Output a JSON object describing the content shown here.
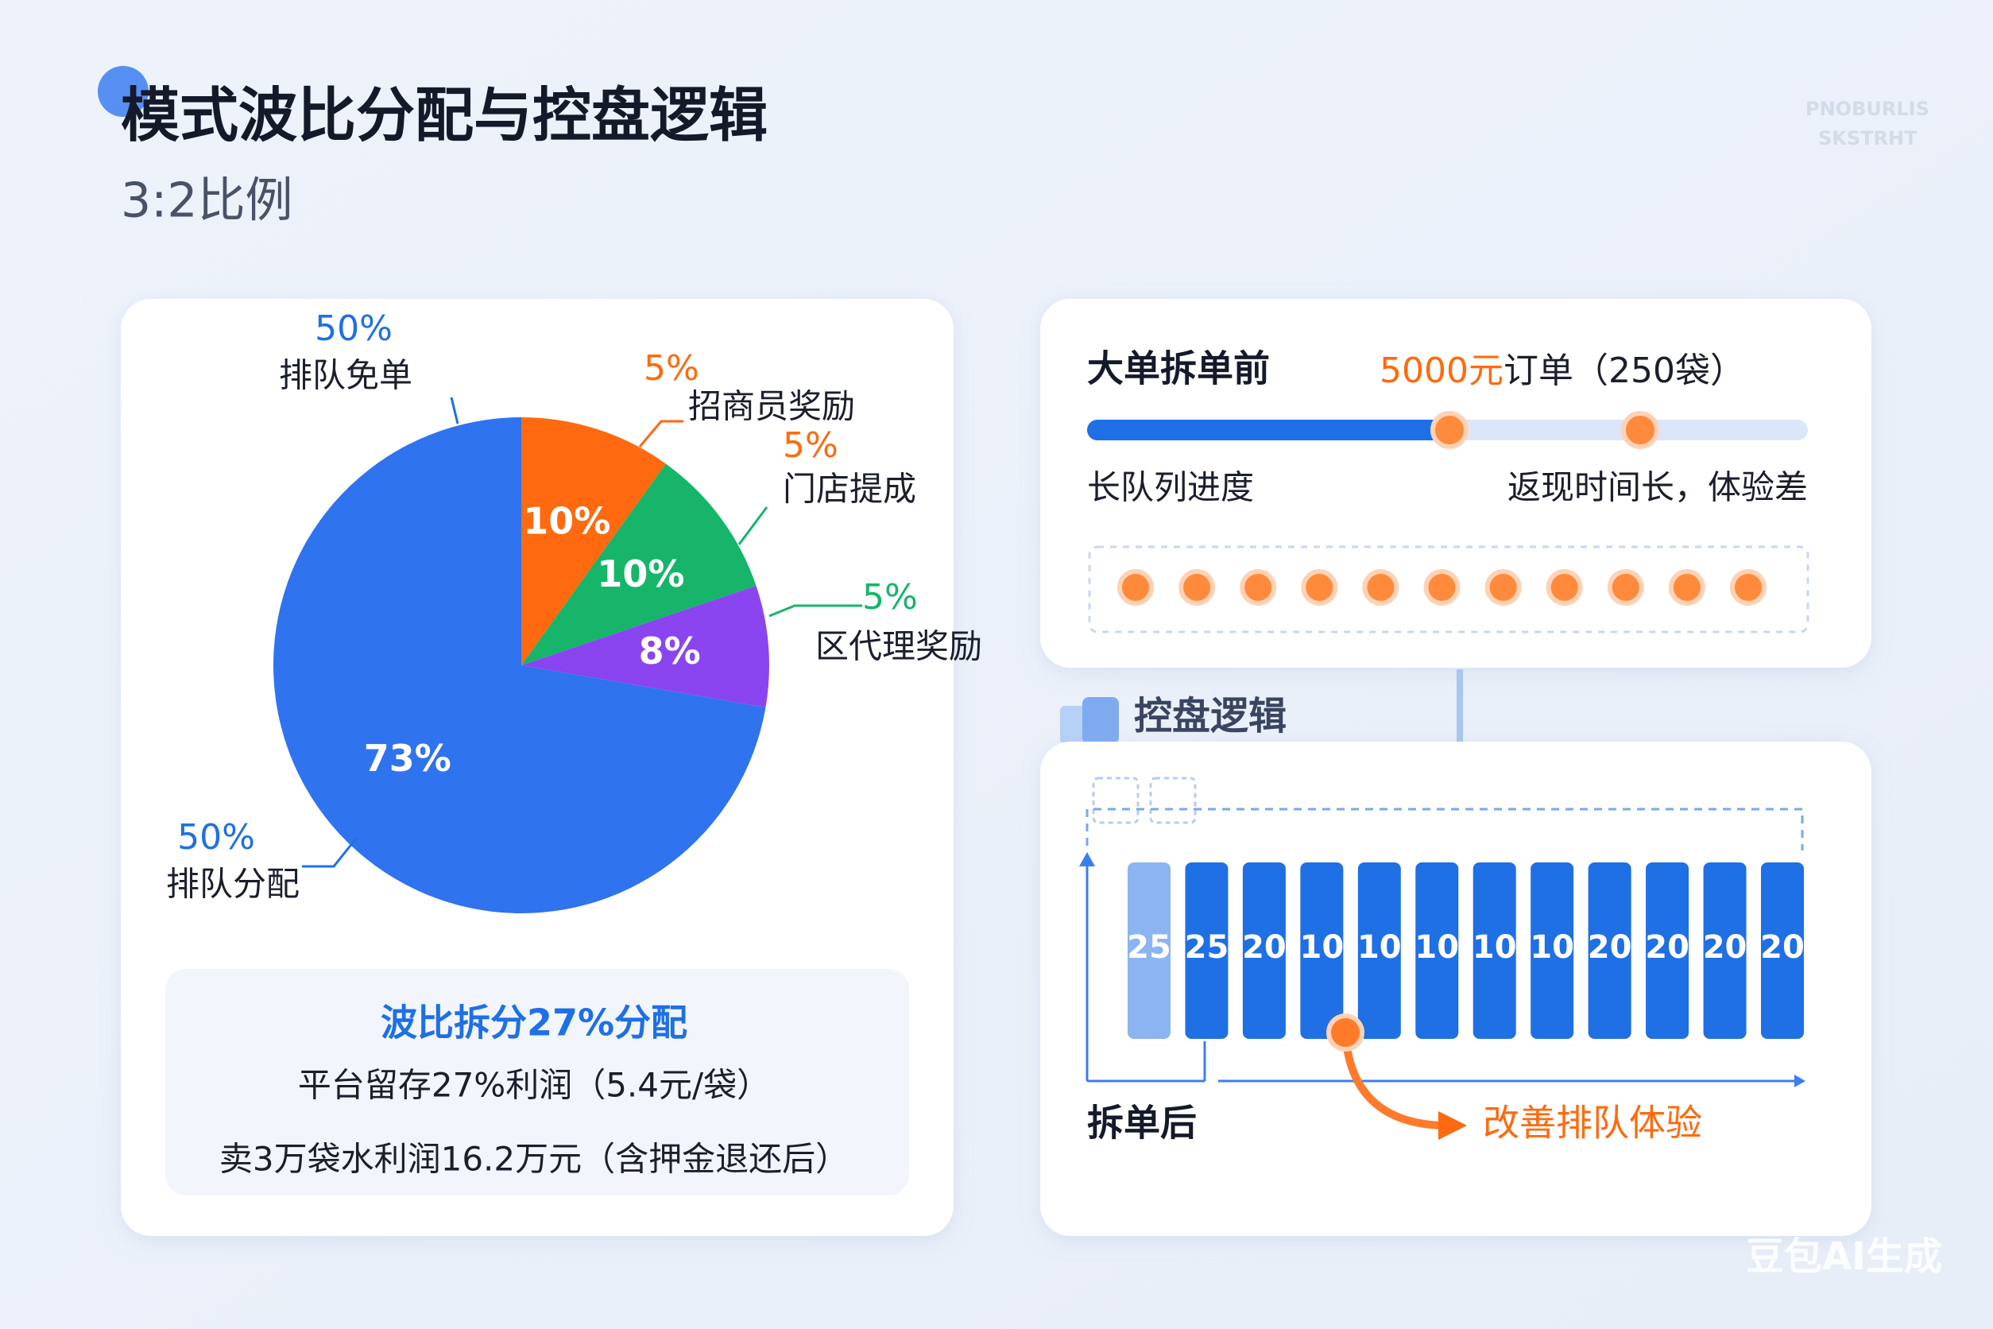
{
  "header": {
    "title": "模式波比分配与控盘逻辑",
    "subtitle": "3:2比例",
    "watermark": [
      "PNOBURLIS",
      "SKSTRHT"
    ]
  },
  "chart_data": {
    "type": "pie",
    "values": [
      10,
      10,
      8,
      73
    ],
    "value_labels": [
      "10%",
      "10%",
      "8%",
      "73%"
    ],
    "colors": [
      "#ff6a10",
      "#17b56a",
      "#8b45f0",
      "#2f73ee"
    ],
    "callouts": [
      {
        "percent": "50%",
        "text": "排队免单",
        "color": "#1f6fe5"
      },
      {
        "percent": "5%",
        "text": "招商员奖励",
        "color": "#ff6a10"
      },
      {
        "percent": "5%",
        "text": "门店提成",
        "color": "#ff6a10"
      },
      {
        "percent": "5%",
        "text": "区代理奖励",
        "color": "#17b56a"
      },
      {
        "percent": "50%",
        "text": "排队分配",
        "color": "#1f6fe5"
      }
    ]
  },
  "summary": {
    "title": "波比拆分27%分配",
    "lines": [
      "平台留存27%利润（5.4元/袋）",
      "卖3万袋水利润16.2万元（含押金退还后）"
    ]
  },
  "before_split": {
    "title": "大单拆单前",
    "order_amount": "5000元",
    "order_detail": "订单（250袋）",
    "left_note": "长队列进度",
    "right_note": "返现时间长，体验差"
  },
  "control": {
    "title": "控盘逻辑",
    "segments": [
      25,
      25,
      20,
      10,
      10,
      10,
      10,
      10,
      20,
      20,
      20,
      20
    ],
    "after_label": "拆单后",
    "improvement": "改善排队体验"
  },
  "footer": "豆包AI生成"
}
